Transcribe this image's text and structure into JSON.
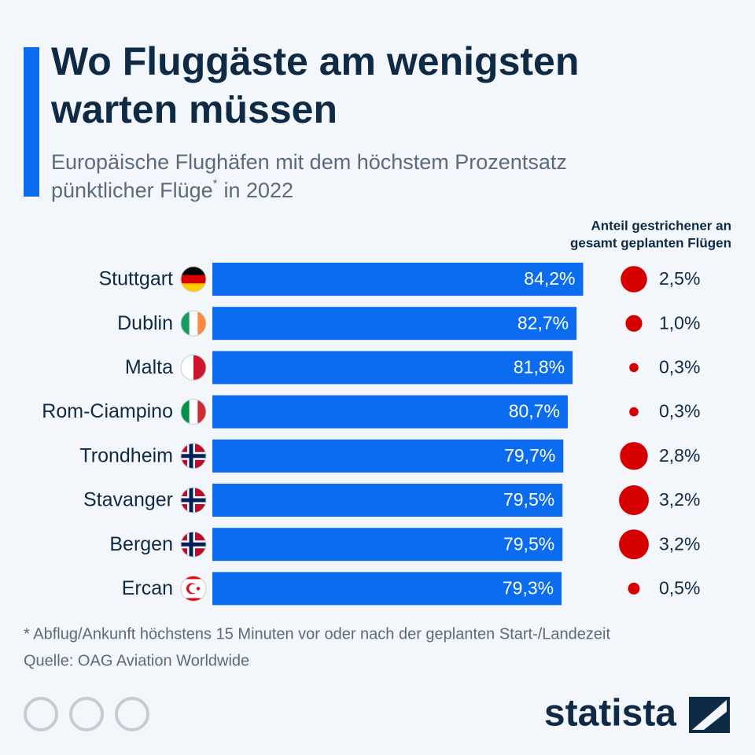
{
  "chart_data": {
    "type": "bar",
    "orientation": "horizontal",
    "title_lines": [
      "Wo Fluggäste am wenigsten",
      "warten müssen"
    ],
    "subtitle_lines": [
      "Europäische Flughäfen mit dem höchstem Prozentsatz",
      "pünktlicher Flüge"
    ],
    "subtitle_mark": "*",
    "subtitle_end": "in 2022",
    "categories": [
      "Stuttgart",
      "Dublin",
      "Malta",
      "Rom-Ciampino",
      "Trondheim",
      "Stavanger",
      "Bergen",
      "Ercan"
    ],
    "values": [
      84.2,
      82.7,
      81.8,
      80.7,
      79.7,
      79.5,
      79.5,
      79.3
    ],
    "value_labels": [
      "84,2%",
      "82,7%",
      "81,8%",
      "80,7%",
      "79,7%",
      "79,5%",
      "79,5%",
      "79,3%"
    ],
    "color": "#0b6cf0",
    "bubbles": {
      "title_lines": [
        "Anteil gestrichener an",
        "gesamt geplanten Flügen"
      ],
      "values": [
        2.5,
        1.0,
        0.3,
        0.3,
        2.8,
        3.2,
        3.2,
        0.5
      ],
      "value_labels": [
        "2,5%",
        "1,0%",
        "0,3%",
        "0,3%",
        "2,8%",
        "3,2%",
        "3,2%",
        "0,5%"
      ],
      "color": "#d60000"
    },
    "footnote": "* Abflug/Ankunft höchstens 15 Minuten vor oder nach der geplanten Start-/Landezeit",
    "source": "Quelle: OAG Aviation Worldwide",
    "brand": "statista"
  }
}
